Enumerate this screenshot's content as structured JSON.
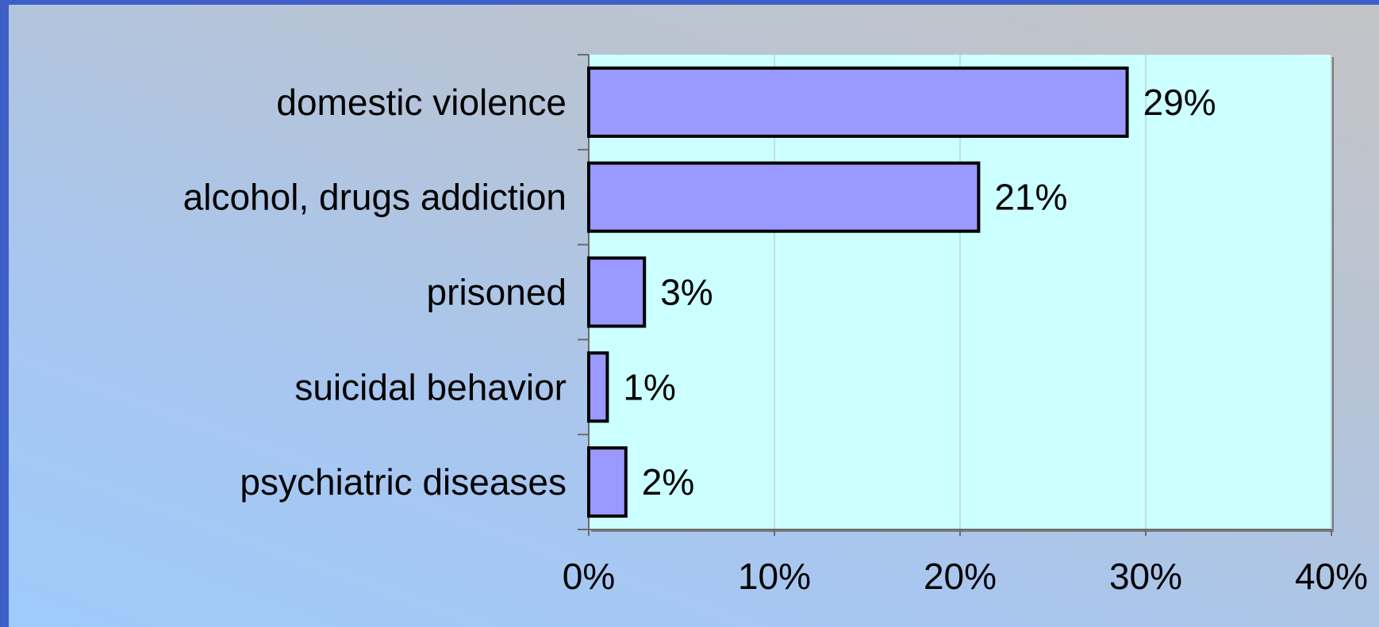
{
  "colors": {
    "plot_bg": "#ccffff",
    "bar_fill": "#9999ff",
    "bar_stroke": "#000000",
    "gridline": "#c0d4d4",
    "axis": "#6a6a6a",
    "text": "#000000"
  },
  "chart_data": {
    "type": "bar",
    "orientation": "horizontal",
    "title": "",
    "xlabel": "",
    "ylabel": "",
    "categories": [
      "domestic violence",
      "alcohol, drugs addiction",
      "prisoned",
      "suicidal behavior",
      "psychiatric diseases"
    ],
    "values": [
      29,
      21,
      3,
      1,
      2
    ],
    "data_labels": [
      "29%",
      "21%",
      "3%",
      "1%",
      "2%"
    ],
    "xlim": [
      0,
      40
    ],
    "x_ticks": [
      0,
      10,
      20,
      30,
      40
    ],
    "x_tick_labels": [
      "0%",
      "10%",
      "20%",
      "30%",
      "40%"
    ],
    "grid": "vertical",
    "legend": "none"
  }
}
